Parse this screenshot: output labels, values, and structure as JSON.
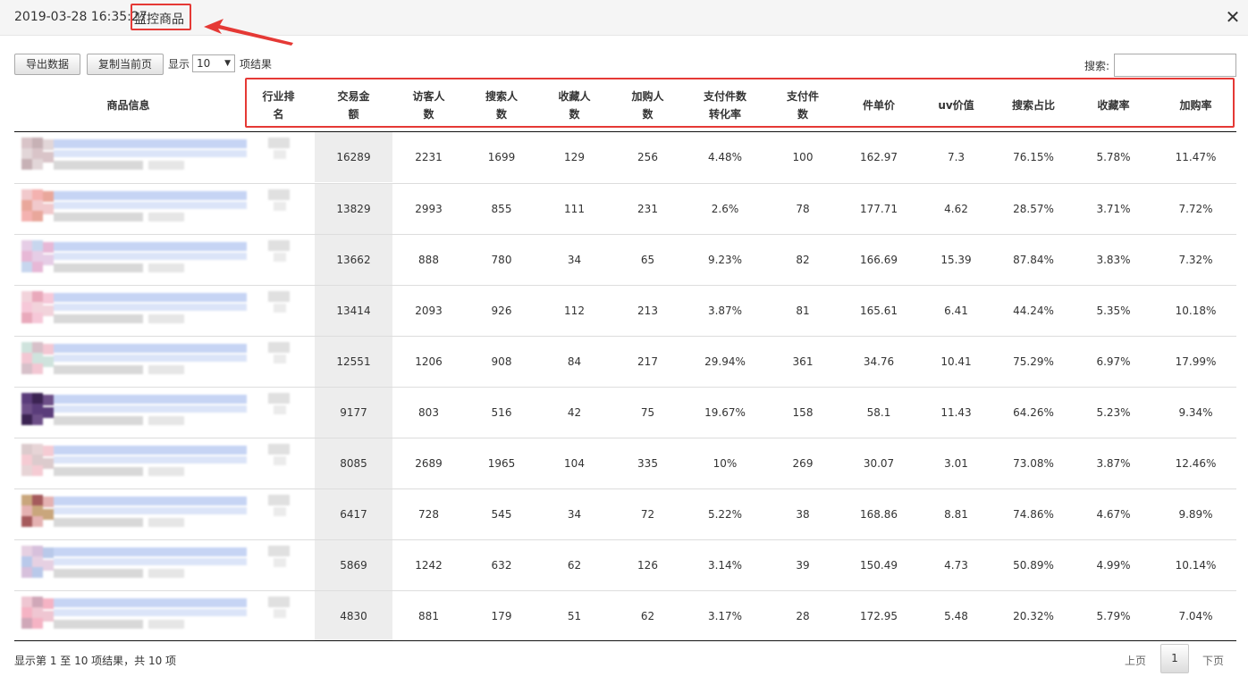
{
  "dialog": {
    "timestamp": "2019-03-28 16:35:27",
    "title": "监控商品"
  },
  "toolbar": {
    "export_label": "导出数据",
    "copy_label": "复制当前页",
    "show_label": "显示",
    "page_size": "10",
    "entries_label": "项结果",
    "search_label": "搜索:",
    "search_value": ""
  },
  "table": {
    "headers": [
      "商品信息",
      "行业排名",
      "交易金额",
      "访客人数",
      "搜索人数",
      "收藏人数",
      "加购人数",
      "支付件数转化率",
      "支付件数",
      "件单价",
      "uv价值",
      "搜索占比",
      "收藏率",
      "加购率"
    ],
    "header_lines": [
      [
        "商品信息"
      ],
      [
        "行业排",
        "名"
      ],
      [
        "交易金",
        "额"
      ],
      [
        "访客人",
        "数"
      ],
      [
        "搜索人",
        "数"
      ],
      [
        "收藏人",
        "数"
      ],
      [
        "加购人",
        "数"
      ],
      [
        "支付件数",
        "转化率"
      ],
      [
        "支付件",
        "数"
      ],
      [
        "件单价"
      ],
      [
        "uv价值"
      ],
      [
        "搜索占比"
      ],
      [
        "收藏率"
      ],
      [
        "加购率"
      ]
    ],
    "rows": [
      [
        "16289",
        "2231",
        "1699",
        "129",
        "256",
        "4.48%",
        "100",
        "162.97",
        "7.3",
        "76.15%",
        "5.78%",
        "11.47%"
      ],
      [
        "13829",
        "2993",
        "855",
        "111",
        "231",
        "2.6%",
        "78",
        "177.71",
        "4.62",
        "28.57%",
        "3.71%",
        "7.72%"
      ],
      [
        "13662",
        "888",
        "780",
        "34",
        "65",
        "9.23%",
        "82",
        "166.69",
        "15.39",
        "87.84%",
        "3.83%",
        "7.32%"
      ],
      [
        "13414",
        "2093",
        "926",
        "112",
        "213",
        "3.87%",
        "81",
        "165.61",
        "6.41",
        "44.24%",
        "5.35%",
        "10.18%"
      ],
      [
        "12551",
        "1206",
        "908",
        "84",
        "217",
        "29.94%",
        "361",
        "34.76",
        "10.41",
        "75.29%",
        "6.97%",
        "17.99%"
      ],
      [
        "9177",
        "803",
        "516",
        "42",
        "75",
        "19.67%",
        "158",
        "58.1",
        "11.43",
        "64.26%",
        "5.23%",
        "9.34%"
      ],
      [
        "8085",
        "2689",
        "1965",
        "104",
        "335",
        "10%",
        "269",
        "30.07",
        "3.01",
        "73.08%",
        "3.87%",
        "12.46%"
      ],
      [
        "6417",
        "728",
        "545",
        "34",
        "72",
        "5.22%",
        "38",
        "168.86",
        "8.81",
        "74.86%",
        "4.67%",
        "9.89%"
      ],
      [
        "5869",
        "1242",
        "632",
        "62",
        "126",
        "3.14%",
        "39",
        "150.49",
        "4.73",
        "50.89%",
        "4.99%",
        "10.14%"
      ],
      [
        "4830",
        "881",
        "179",
        "51",
        "62",
        "3.17%",
        "28",
        "172.95",
        "5.48",
        "20.32%",
        "5.79%",
        "7.04%"
      ]
    ],
    "thumb_colors": [
      [
        "#d9c4c8",
        "#c7b1b5",
        "#e2d6d8"
      ],
      [
        "#f1c9cc",
        "#f4b2b0",
        "#e9a79b"
      ],
      [
        "#e6cde6",
        "#c7d6ee",
        "#e7b8d6"
      ],
      [
        "#f2d3db",
        "#e9a9bb",
        "#f6c8d8"
      ],
      [
        "#cfe3dd",
        "#d7c0c9",
        "#f3c7d3"
      ],
      [
        "#5a3c7a",
        "#3b2352",
        "#6d4f88"
      ],
      [
        "#dccbcd",
        "#e7d4d6",
        "#f5cbd3"
      ],
      [
        "#c9a67c",
        "#a55a5c",
        "#e5b2b2"
      ],
      [
        "#e6d0e2",
        "#d7c0dc",
        "#b9c9ea"
      ],
      [
        "#efc6d2",
        "#d0a7b8",
        "#f5b3c4"
      ]
    ]
  },
  "footer": {
    "info": "显示第 1 至 10 项结果，共 10 项",
    "prev_label": "上页",
    "current_page": "1",
    "next_label": "下页"
  }
}
